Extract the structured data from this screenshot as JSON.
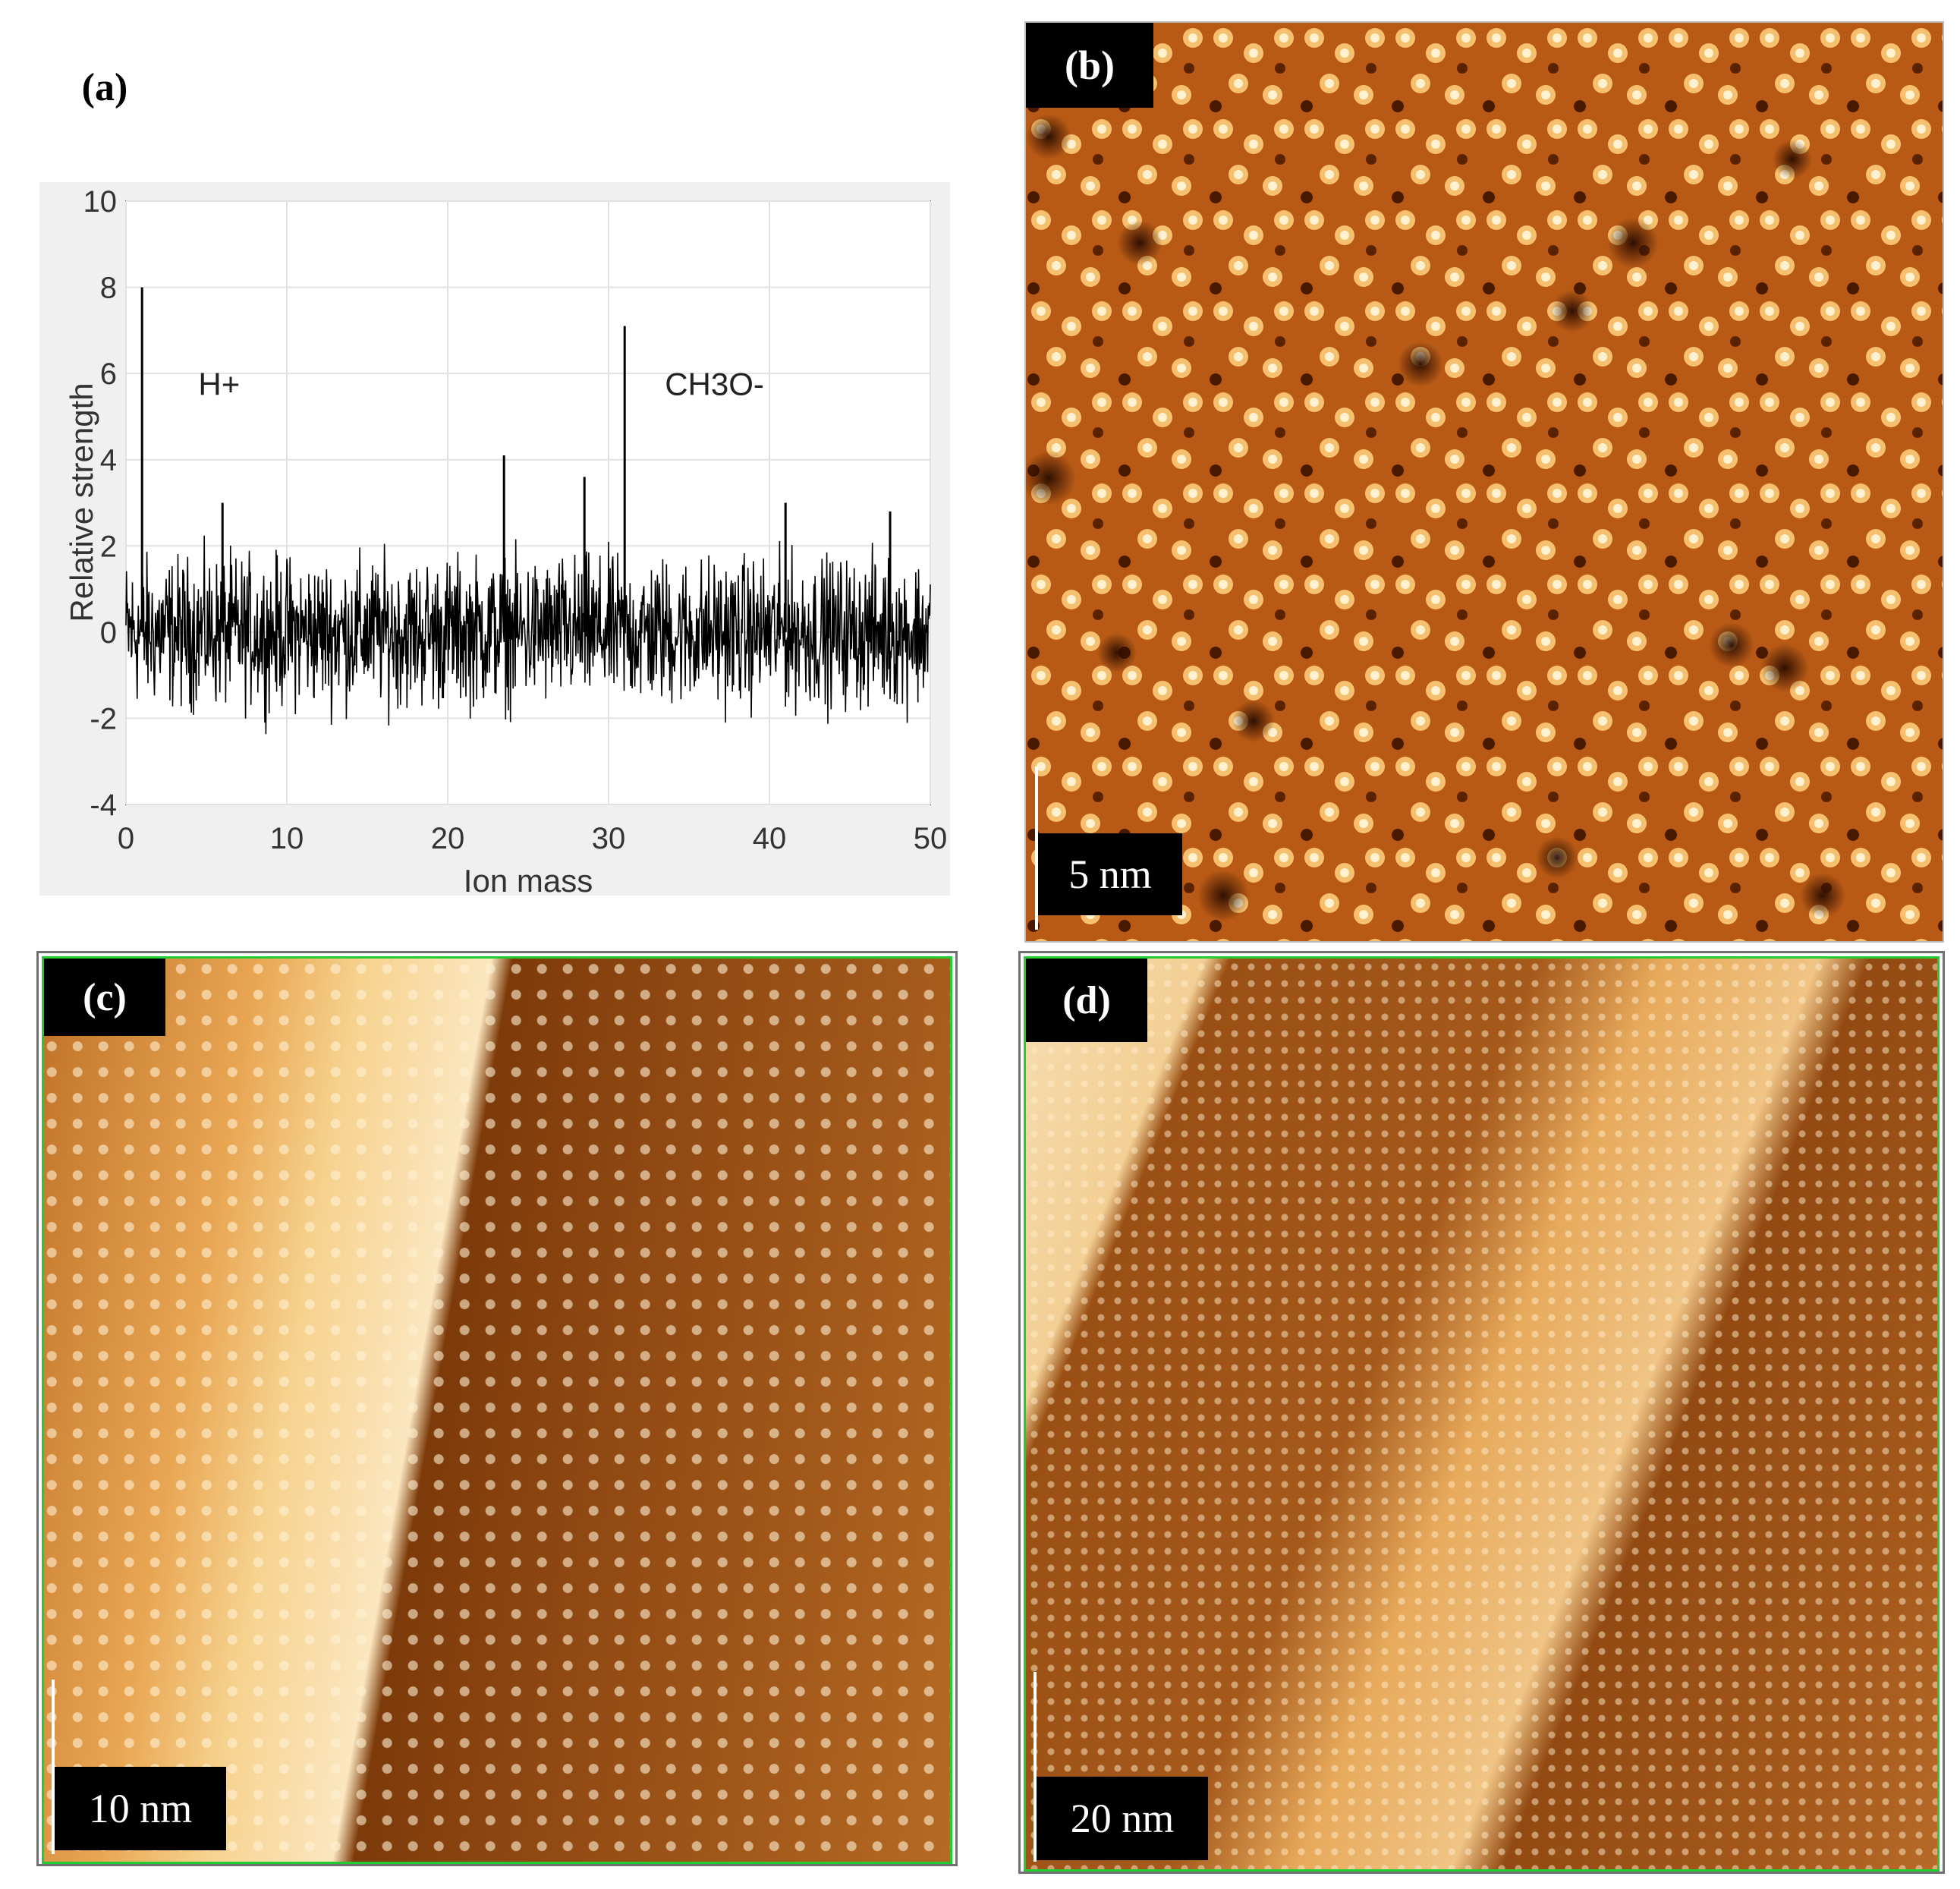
{
  "figure": {
    "panel_a": {
      "label": "(a)",
      "chart_data": {
        "type": "line",
        "xlabel": "Ion mass",
        "ylabel": "Relative strength",
        "xlim": [
          0,
          50
        ],
        "ylim": [
          -4,
          10
        ],
        "x_ticks": [
          "0",
          "10",
          "20",
          "30",
          "40",
          "50"
        ],
        "y_ticks": [
          "10",
          "8",
          "6",
          "4",
          "2",
          "0",
          "-2",
          "-4"
        ],
        "grid": true,
        "noise_band": [
          -2.5,
          2.5
        ],
        "series": [
          {
            "peaks": [
              {
                "x": 1,
                "y": 8.0
              },
              {
                "x": 6,
                "y": 3.0
              },
              {
                "x": 23.5,
                "y": 4.1
              },
              {
                "x": 28.5,
                "y": 3.6
              },
              {
                "x": 31,
                "y": 7.1
              },
              {
                "x": 41,
                "y": 3.0
              },
              {
                "x": 47.5,
                "y": 2.8
              }
            ]
          }
        ],
        "annotations": [
          {
            "text": "H+",
            "x": 4.5,
            "y": 5.5
          },
          {
            "text": "CH3O-",
            "x": 33.5,
            "y": 5.5
          }
        ]
      }
    },
    "panel_b": {
      "label": "(b)",
      "scale": "5 nm",
      "colormap": [
        "#3a1400",
        "#8a3a00",
        "#c96a1a",
        "#f0b060",
        "#fff4d8"
      ]
    },
    "panel_c": {
      "label": "(c)",
      "scale": "10 nm",
      "frame_color": "#22cc33"
    },
    "panel_d": {
      "label": "(d)",
      "scale": "20 nm",
      "frame_color": "#22cc33"
    }
  }
}
